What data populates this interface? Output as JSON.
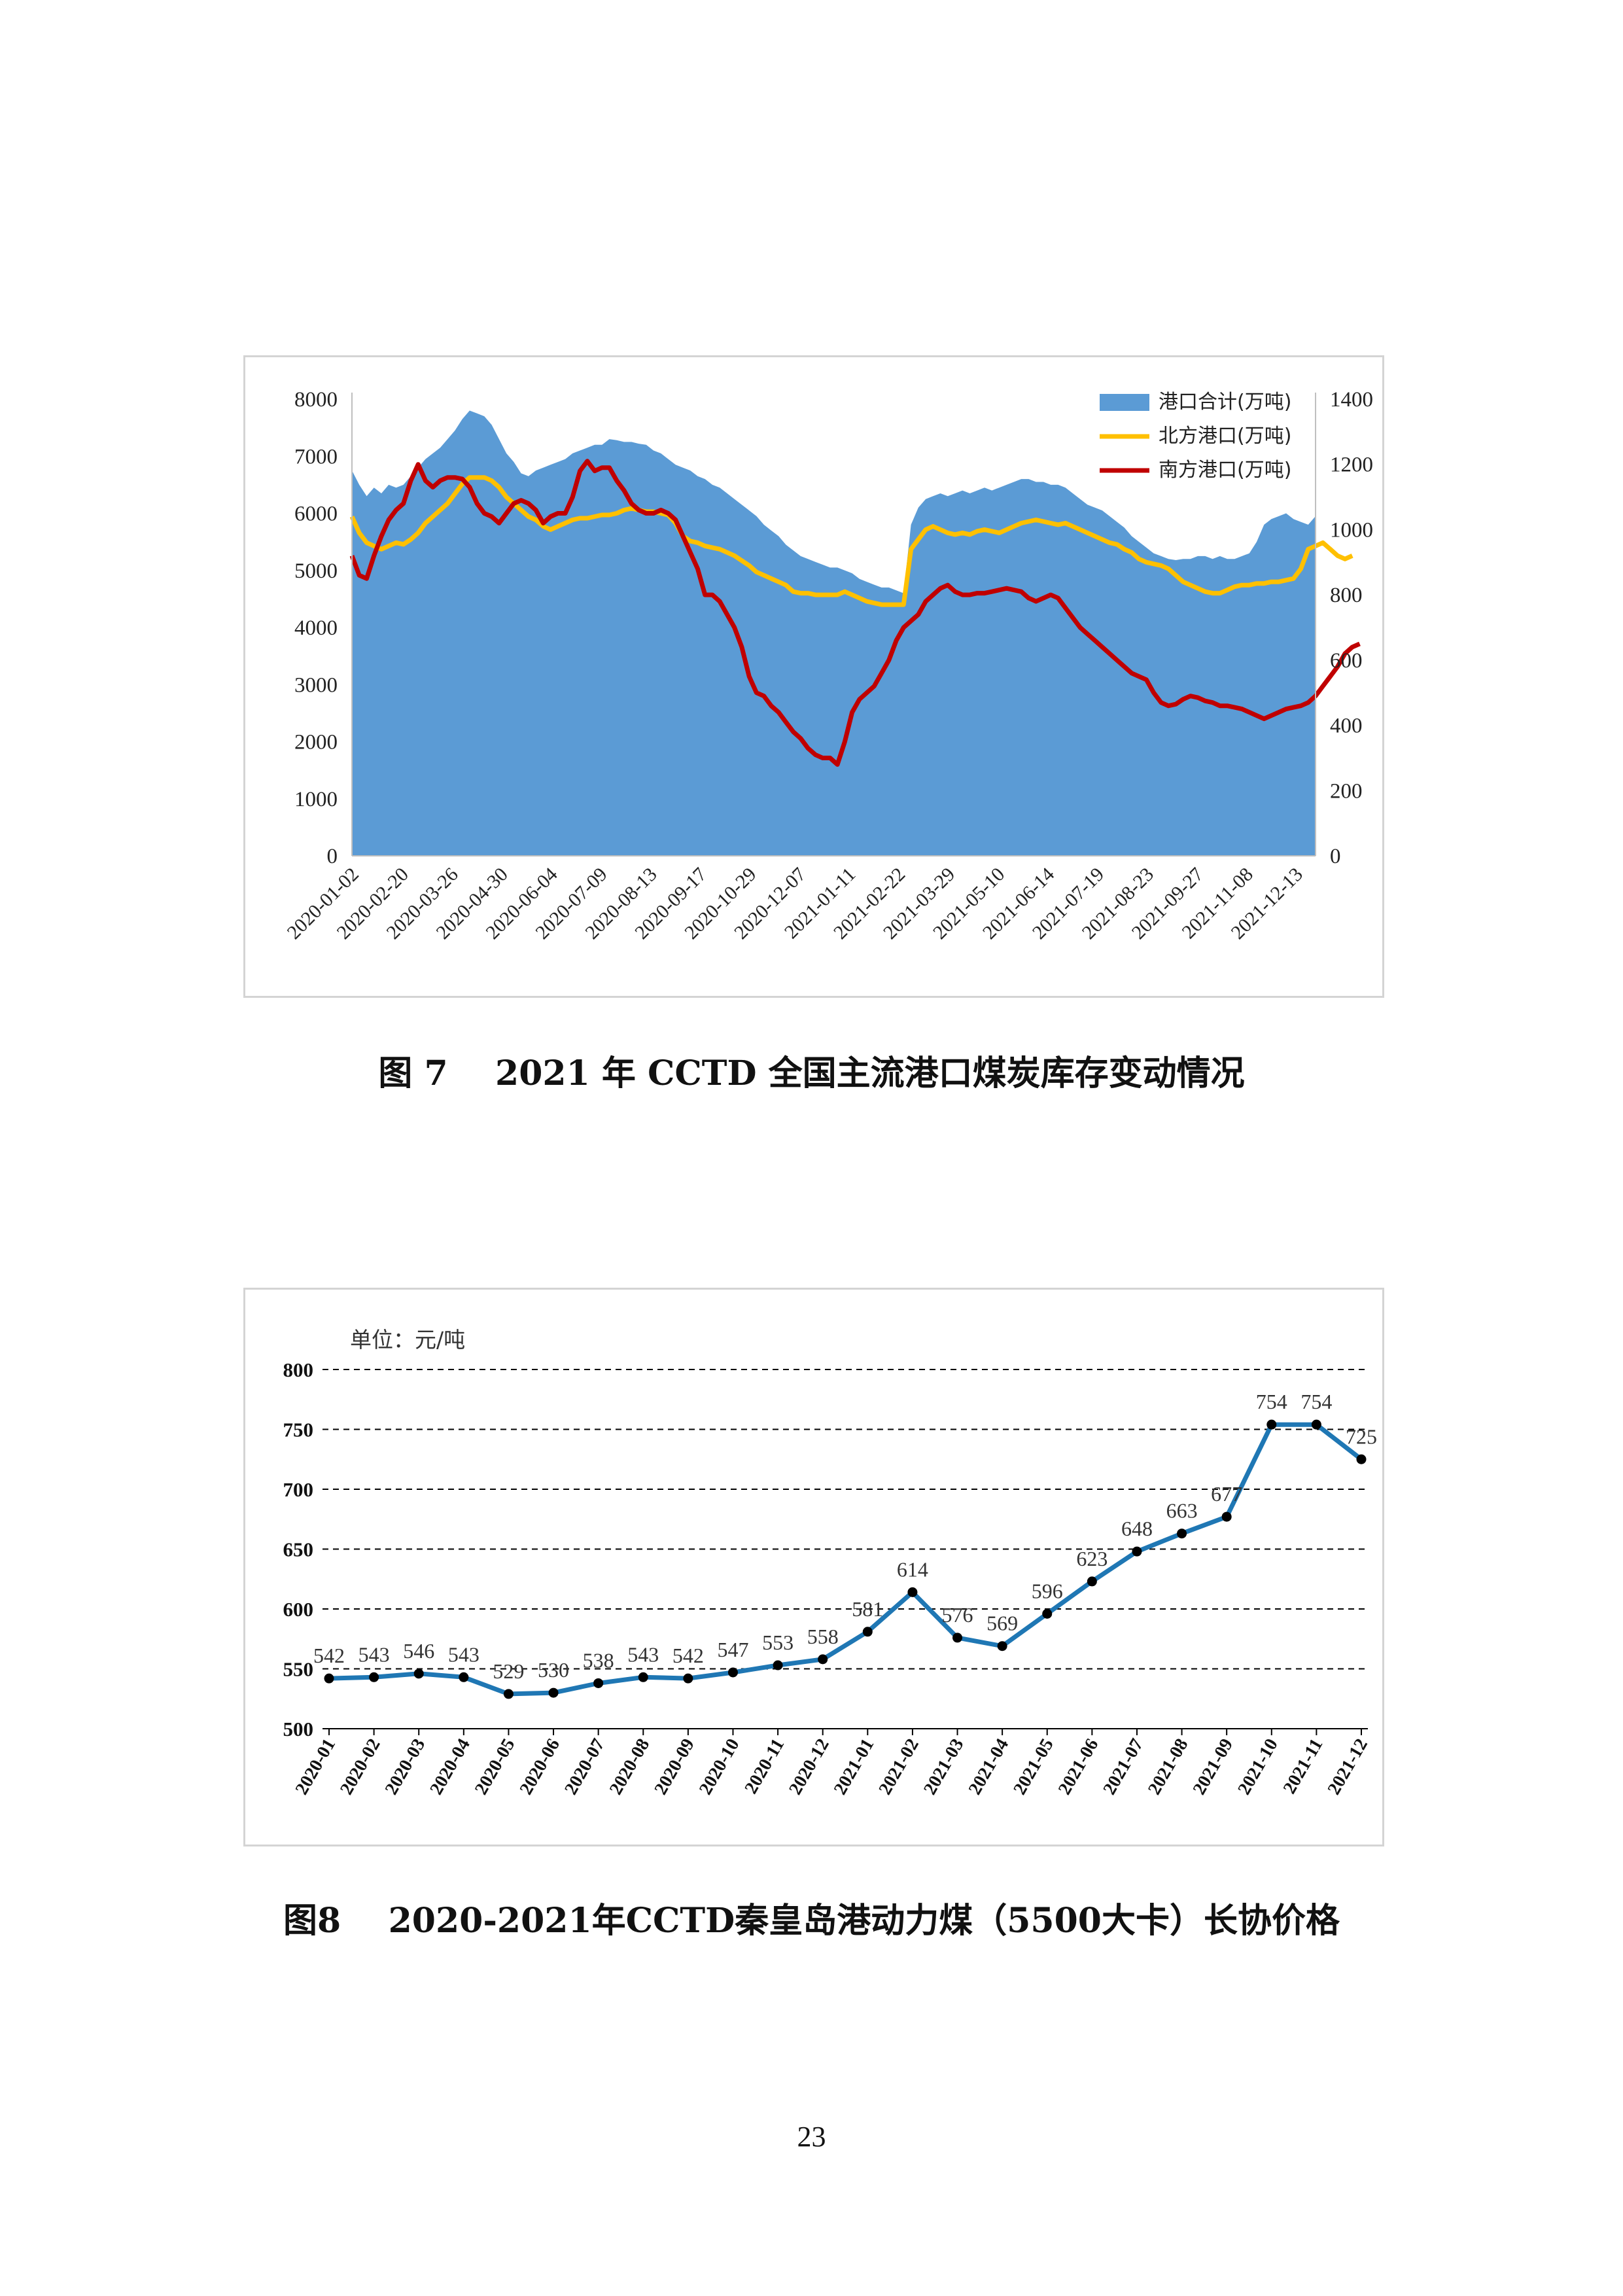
{
  "page_number": "23",
  "figure7": {
    "caption": "图 7    2021 年 CCTD 全国主流港口煤炭库存变动情况",
    "colors": {
      "total": "#5b9bd5",
      "north": "#ffc000",
      "south": "#c00000"
    }
  },
  "figure8": {
    "caption": "图8    2020-2021年CCTD秦皇岛港动力煤（5500大卡）长协价格",
    "unit_label": "单位：元/吨",
    "colors": {
      "line": "#1f77b4",
      "marker": "#000000",
      "grid": "#000000"
    }
  },
  "chart_data": [
    {
      "type": "area",
      "title": "2021 年 CCTD 全国主流港口煤炭库存变动情况",
      "x_tick_labels": [
        "2020-01-02",
        "2020-02-20",
        "2020-03-26",
        "2020-04-30",
        "2020-06-04",
        "2020-07-09",
        "2020-08-13",
        "2020-09-17",
        "2020-10-29",
        "2020-12-07",
        "2021-01-11",
        "2021-02-22",
        "2021-03-29",
        "2021-05-10",
        "2021-06-14",
        "2021-07-19",
        "2021-08-23",
        "2021-09-27",
        "2021-11-08",
        "2021-12-13"
      ],
      "y_left": {
        "min": 0,
        "max": 8000,
        "ticks": [
          "0",
          "1000",
          "2000",
          "3000",
          "4000",
          "5000",
          "6000",
          "7000",
          "8000"
        ]
      },
      "y_right": {
        "min": 0,
        "max": 1400,
        "ticks": [
          "0",
          "200",
          "400",
          "600",
          "800",
          "1000",
          "1200",
          "1400"
        ]
      },
      "series": [
        {
          "name": "港口合计(万吨)",
          "axis": "left",
          "style": "area",
          "values": [
            6750,
            6500,
            6300,
            6450,
            6350,
            6500,
            6450,
            6500,
            6650,
            6800,
            6950,
            7050,
            7150,
            7300,
            7450,
            7650,
            7800,
            7750,
            7700,
            7550,
            7300,
            7050,
            6900,
            6700,
            6650,
            6750,
            6800,
            6850,
            6900,
            6950,
            7050,
            7100,
            7150,
            7200,
            7200,
            7300,
            7280,
            7250,
            7250,
            7220,
            7200,
            7100,
            7050,
            6950,
            6850,
            6800,
            6750,
            6650,
            6600,
            6500,
            6450,
            6350,
            6250,
            6150,
            6050,
            5950,
            5800,
            5700,
            5600,
            5450,
            5350,
            5250,
            5200,
            5150,
            5100,
            5050,
            5050,
            5000,
            4950,
            4850,
            4800,
            4750,
            4700,
            4700,
            4650,
            4600,
            5800,
            6100,
            6250,
            6300,
            6350,
            6300,
            6350,
            6400,
            6350,
            6400,
            6450,
            6400,
            6450,
            6500,
            6550,
            6600,
            6600,
            6550,
            6550,
            6500,
            6500,
            6450,
            6350,
            6250,
            6150,
            6100,
            6050,
            5950,
            5850,
            5750,
            5600,
            5500,
            5400,
            5300,
            5250,
            5200,
            5180,
            5200,
            5200,
            5250,
            5250,
            5200,
            5250,
            5200,
            5200,
            5250,
            5300,
            5500,
            5800,
            5900,
            5950,
            6000,
            5900,
            5850,
            5800,
            5950
          ]
        },
        {
          "name": "北方港口(万吨)",
          "axis": "right",
          "style": "line",
          "values": [
            1040,
            990,
            960,
            950,
            940,
            950,
            960,
            955,
            970,
            990,
            1020,
            1040,
            1060,
            1080,
            1110,
            1140,
            1160,
            1160,
            1160,
            1150,
            1130,
            1100,
            1080,
            1060,
            1040,
            1030,
            1010,
            1000,
            1010,
            1020,
            1030,
            1035,
            1035,
            1040,
            1045,
            1045,
            1050,
            1060,
            1065,
            1060,
            1055,
            1055,
            1050,
            1045,
            1020,
            980,
            965,
            960,
            950,
            945,
            940,
            930,
            920,
            905,
            890,
            870,
            860,
            850,
            840,
            830,
            810,
            805,
            805,
            800,
            800,
            800,
            800,
            810,
            800,
            790,
            780,
            775,
            770,
            770,
            770,
            770,
            940,
            970,
            1000,
            1010,
            1000,
            990,
            985,
            990,
            985,
            995,
            1000,
            995,
            990,
            1000,
            1010,
            1020,
            1025,
            1030,
            1025,
            1020,
            1015,
            1020,
            1010,
            1000,
            990,
            980,
            970,
            960,
            955,
            940,
            930,
            910,
            900,
            895,
            890,
            880,
            860,
            840,
            830,
            820,
            810,
            805,
            805,
            815,
            825,
            830,
            830,
            835,
            835,
            840,
            840,
            845,
            850,
            880,
            940,
            950,
            960,
            940,
            920,
            910,
            920
          ]
        },
        {
          "name": "南方港口(万吨)",
          "axis": "right",
          "style": "line",
          "values": [
            920,
            860,
            850,
            920,
            980,
            1030,
            1060,
            1080,
            1150,
            1200,
            1150,
            1130,
            1150,
            1160,
            1160,
            1155,
            1130,
            1080,
            1050,
            1040,
            1020,
            1050,
            1080,
            1090,
            1080,
            1060,
            1020,
            1040,
            1050,
            1050,
            1100,
            1180,
            1210,
            1180,
            1190,
            1190,
            1150,
            1120,
            1080,
            1060,
            1050,
            1050,
            1060,
            1050,
            1030,
            980,
            930,
            880,
            800,
            800,
            780,
            740,
            700,
            640,
            550,
            500,
            490,
            460,
            440,
            410,
            380,
            360,
            330,
            310,
            300,
            300,
            280,
            350,
            440,
            480,
            500,
            520,
            560,
            600,
            660,
            700,
            720,
            740,
            780,
            800,
            820,
            830,
            810,
            800,
            800,
            805,
            805,
            810,
            815,
            820,
            815,
            810,
            790,
            780,
            790,
            800,
            790,
            760,
            730,
            700,
            680,
            660,
            640,
            620,
            600,
            580,
            560,
            550,
            540,
            500,
            470,
            460,
            465,
            480,
            490,
            485,
            475,
            470,
            460,
            460,
            455,
            450,
            440,
            430,
            420,
            430,
            440,
            450,
            455,
            460,
            470,
            490,
            520,
            550,
            580,
            620,
            640,
            650
          ]
        }
      ]
    },
    {
      "type": "line",
      "title": "2020-2021年CCTD秦皇岛港动力煤（5500大卡）长协价格",
      "ylabel": "单位：元/吨",
      "ylim": [
        500,
        800
      ],
      "y_ticks": [
        "500",
        "550",
        "600",
        "650",
        "700",
        "750",
        "800"
      ],
      "grid": "dashed-horizontal",
      "categories": [
        "2020-01",
        "2020-02",
        "2020-03",
        "2020-04",
        "2020-05",
        "2020-06",
        "2020-07",
        "2020-08",
        "2020-09",
        "2020-10",
        "2020-11",
        "2020-12",
        "2021-01",
        "2021-02",
        "2021-03",
        "2021-04",
        "2021-05",
        "2021-06",
        "2021-07",
        "2021-08",
        "2021-09",
        "2021-10",
        "2021-11",
        "2021-12"
      ],
      "values": [
        542,
        543,
        546,
        543,
        529,
        530,
        538,
        543,
        542,
        547,
        553,
        558,
        581,
        614,
        576,
        569,
        596,
        623,
        648,
        663,
        677,
        754,
        754,
        725
      ],
      "data_labels": [
        "542",
        "543",
        "546",
        "543",
        "529",
        "530",
        "538",
        "543",
        "542",
        "547",
        "553",
        "558",
        "581",
        "614",
        "576",
        "569",
        "596",
        "623",
        "648",
        "663",
        "677",
        "754",
        "754",
        "725"
      ]
    }
  ]
}
